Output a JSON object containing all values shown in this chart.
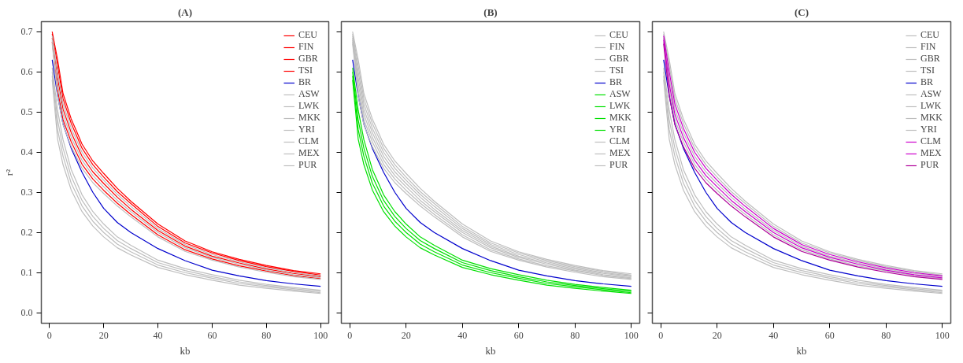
{
  "chart_data": [
    {
      "type": "line",
      "title": "(A)",
      "xlabel": "kb",
      "ylabel": "r²",
      "x": [
        1,
        3,
        5,
        8,
        10,
        12,
        16,
        20,
        25,
        30,
        40,
        50,
        60,
        70,
        80,
        90,
        100
      ],
      "xlim": [
        -3,
        103
      ],
      "xticks": [
        0,
        20,
        40,
        60,
        80,
        100
      ],
      "ylim": [
        -0.026,
        0.725
      ],
      "yticks": [
        {
          "value": 0,
          "label": "0.0"
        },
        0.1,
        0.2,
        0.3,
        0.4,
        0.5,
        0.6,
        0.7
      ],
      "grid": false,
      "legend": "top right",
      "series": [
        {
          "name": "CEU",
          "color": "#ff0000",
          "values": [
            0.695,
            0.615,
            0.533,
            0.472,
            0.441,
            0.41,
            0.369,
            0.338,
            0.302,
            0.272,
            0.215,
            0.174,
            0.149,
            0.13,
            0.115,
            0.103,
            0.094
          ]
        },
        {
          "name": "FIN",
          "color": "#ff0000",
          "values": [
            0.7,
            0.63,
            0.546,
            0.483,
            0.452,
            0.42,
            0.378,
            0.347,
            0.31,
            0.278,
            0.221,
            0.179,
            0.152,
            0.133,
            0.118,
            0.105,
            0.097
          ]
        },
        {
          "name": "GBR",
          "color": "#ff0000",
          "values": [
            0.685,
            0.585,
            0.507,
            0.449,
            0.419,
            0.39,
            0.351,
            0.322,
            0.288,
            0.258,
            0.205,
            0.166,
            0.141,
            0.124,
            0.109,
            0.098,
            0.09
          ]
        },
        {
          "name": "TSI",
          "color": "#ff0000",
          "values": [
            0.675,
            0.555,
            0.481,
            0.426,
            0.398,
            0.37,
            0.333,
            0.305,
            0.273,
            0.245,
            0.194,
            0.157,
            0.134,
            0.117,
            0.104,
            0.093,
            0.085
          ]
        },
        {
          "name": "BR",
          "color": "#0000cd",
          "values": [
            0.63,
            0.54,
            0.47,
            0.41,
            0.38,
            0.35,
            0.3,
            0.26,
            0.225,
            0.2,
            0.16,
            0.13,
            0.106,
            0.092,
            0.08,
            0.072,
            0.066
          ]
        },
        {
          "name": "ASW",
          "color": "#bebebe",
          "values": [
            0.61,
            0.504,
            0.431,
            0.357,
            0.326,
            0.294,
            0.252,
            0.221,
            0.189,
            0.168,
            0.131,
            0.11,
            0.095,
            0.081,
            0.071,
            0.063,
            0.056
          ]
        },
        {
          "name": "LWK",
          "color": "#bebebe",
          "values": [
            0.59,
            0.456,
            0.39,
            0.323,
            0.295,
            0.266,
            0.228,
            0.2,
            0.171,
            0.152,
            0.119,
            0.1,
            0.086,
            0.073,
            0.065,
            0.057,
            0.05
          ]
        },
        {
          "name": "MKK",
          "color": "#bebebe",
          "values": [
            0.6,
            0.48,
            0.41,
            0.34,
            0.31,
            0.28,
            0.24,
            0.21,
            0.18,
            0.16,
            0.125,
            0.105,
            0.09,
            0.077,
            0.068,
            0.06,
            0.053
          ]
        },
        {
          "name": "YRI",
          "color": "#bebebe",
          "values": [
            0.58,
            0.432,
            0.369,
            0.306,
            0.279,
            0.252,
            0.216,
            0.189,
            0.162,
            0.144,
            0.113,
            0.095,
            0.081,
            0.069,
            0.061,
            0.054,
            0.048
          ]
        },
        {
          "name": "CLM",
          "color": "#bebebe",
          "values": [
            0.68,
            0.57,
            0.494,
            0.437,
            0.409,
            0.38,
            0.342,
            0.314,
            0.28,
            0.252,
            0.2,
            0.162,
            0.138,
            0.121,
            0.106,
            0.095,
            0.087
          ]
        },
        {
          "name": "MEX",
          "color": "#bebebe",
          "values": [
            0.69,
            0.6,
            0.52,
            0.46,
            0.43,
            0.4,
            0.36,
            0.33,
            0.295,
            0.265,
            0.21,
            0.17,
            0.145,
            0.127,
            0.112,
            0.1,
            0.092
          ]
        },
        {
          "name": "PUR",
          "color": "#bebebe",
          "values": [
            0.67,
            0.54,
            0.468,
            0.414,
            0.387,
            0.36,
            0.324,
            0.297,
            0.266,
            0.239,
            0.189,
            0.153,
            0.131,
            0.114,
            0.101,
            0.09,
            0.083
          ]
        }
      ]
    },
    {
      "type": "line",
      "title": "(B)",
      "xlabel": "kb",
      "x": [
        1,
        3,
        5,
        8,
        10,
        12,
        16,
        20,
        25,
        30,
        40,
        50,
        60,
        70,
        80,
        90,
        100
      ],
      "xlim": [
        -3,
        103
      ],
      "xticks": [
        0,
        20,
        40,
        60,
        80,
        100
      ],
      "ylim": [
        -0.026,
        0.725
      ],
      "yticks": [
        0,
        0.1,
        0.2,
        0.3,
        0.4,
        0.5,
        0.6,
        0.7
      ],
      "tick_labels": "x",
      "grid": false,
      "legend": "top right",
      "series": [
        {
          "name": "CEU",
          "color": "#bebebe",
          "values": [
            0.695,
            0.615,
            0.533,
            0.472,
            0.441,
            0.41,
            0.369,
            0.338,
            0.302,
            0.272,
            0.215,
            0.174,
            0.149,
            0.13,
            0.115,
            0.103,
            0.094
          ]
        },
        {
          "name": "FIN",
          "color": "#bebebe",
          "values": [
            0.7,
            0.63,
            0.546,
            0.483,
            0.452,
            0.42,
            0.378,
            0.347,
            0.31,
            0.278,
            0.221,
            0.179,
            0.152,
            0.133,
            0.118,
            0.105,
            0.097
          ]
        },
        {
          "name": "GBR",
          "color": "#bebebe",
          "values": [
            0.685,
            0.585,
            0.507,
            0.449,
            0.419,
            0.39,
            0.351,
            0.322,
            0.288,
            0.258,
            0.205,
            0.166,
            0.141,
            0.124,
            0.109,
            0.098,
            0.09
          ]
        },
        {
          "name": "TSI",
          "color": "#bebebe",
          "values": [
            0.675,
            0.555,
            0.481,
            0.426,
            0.398,
            0.37,
            0.333,
            0.305,
            0.273,
            0.245,
            0.194,
            0.157,
            0.134,
            0.117,
            0.104,
            0.093,
            0.085
          ]
        },
        {
          "name": "BR",
          "color": "#0000cd",
          "values": [
            0.63,
            0.54,
            0.47,
            0.41,
            0.38,
            0.35,
            0.3,
            0.26,
            0.225,
            0.2,
            0.16,
            0.13,
            0.106,
            0.092,
            0.08,
            0.072,
            0.066
          ]
        },
        {
          "name": "ASW",
          "color": "#00e000",
          "values": [
            0.61,
            0.504,
            0.431,
            0.357,
            0.326,
            0.294,
            0.252,
            0.221,
            0.189,
            0.168,
            0.131,
            0.11,
            0.095,
            0.081,
            0.071,
            0.063,
            0.056
          ]
        },
        {
          "name": "LWK",
          "color": "#00e000",
          "values": [
            0.59,
            0.456,
            0.39,
            0.323,
            0.295,
            0.266,
            0.228,
            0.2,
            0.171,
            0.152,
            0.119,
            0.1,
            0.086,
            0.073,
            0.065,
            0.057,
            0.05
          ]
        },
        {
          "name": "MKK",
          "color": "#00e000",
          "values": [
            0.6,
            0.48,
            0.41,
            0.34,
            0.31,
            0.28,
            0.24,
            0.21,
            0.18,
            0.16,
            0.125,
            0.105,
            0.09,
            0.077,
            0.068,
            0.06,
            0.053
          ]
        },
        {
          "name": "YRI",
          "color": "#00e000",
          "values": [
            0.58,
            0.432,
            0.369,
            0.306,
            0.279,
            0.252,
            0.216,
            0.189,
            0.162,
            0.144,
            0.113,
            0.095,
            0.081,
            0.069,
            0.061,
            0.054,
            0.048
          ]
        },
        {
          "name": "CLM",
          "color": "#bebebe",
          "values": [
            0.68,
            0.57,
            0.494,
            0.437,
            0.409,
            0.38,
            0.342,
            0.314,
            0.28,
            0.252,
            0.2,
            0.162,
            0.138,
            0.121,
            0.106,
            0.095,
            0.087
          ]
        },
        {
          "name": "MEX",
          "color": "#bebebe",
          "values": [
            0.69,
            0.6,
            0.52,
            0.46,
            0.43,
            0.4,
            0.36,
            0.33,
            0.295,
            0.265,
            0.21,
            0.17,
            0.145,
            0.127,
            0.112,
            0.1,
            0.092
          ]
        },
        {
          "name": "PUR",
          "color": "#bebebe",
          "values": [
            0.67,
            0.54,
            0.468,
            0.414,
            0.387,
            0.36,
            0.324,
            0.297,
            0.266,
            0.239,
            0.189,
            0.153,
            0.131,
            0.114,
            0.101,
            0.09,
            0.083
          ]
        }
      ]
    },
    {
      "type": "line",
      "title": "(C)",
      "xlabel": "kb",
      "x": [
        1,
        3,
        5,
        8,
        10,
        12,
        16,
        20,
        25,
        30,
        40,
        50,
        60,
        70,
        80,
        90,
        100
      ],
      "xlim": [
        -3,
        103
      ],
      "xticks": [
        0,
        20,
        40,
        60,
        80,
        100
      ],
      "ylim": [
        -0.026,
        0.725
      ],
      "yticks": [
        0,
        0.1,
        0.2,
        0.3,
        0.4,
        0.5,
        0.6,
        0.7
      ],
      "tick_labels": "x",
      "grid": false,
      "legend": "top right",
      "series": [
        {
          "name": "CEU",
          "color": "#bebebe",
          "values": [
            0.695,
            0.615,
            0.533,
            0.472,
            0.441,
            0.41,
            0.369,
            0.338,
            0.302,
            0.272,
            0.215,
            0.174,
            0.149,
            0.13,
            0.115,
            0.103,
            0.094
          ]
        },
        {
          "name": "FIN",
          "color": "#bebebe",
          "values": [
            0.7,
            0.63,
            0.546,
            0.483,
            0.452,
            0.42,
            0.378,
            0.347,
            0.31,
            0.278,
            0.221,
            0.179,
            0.152,
            0.133,
            0.118,
            0.105,
            0.097
          ]
        },
        {
          "name": "GBR",
          "color": "#bebebe",
          "values": [
            0.685,
            0.585,
            0.507,
            0.449,
            0.419,
            0.39,
            0.351,
            0.322,
            0.288,
            0.258,
            0.205,
            0.166,
            0.141,
            0.124,
            0.109,
            0.098,
            0.09
          ]
        },
        {
          "name": "TSI",
          "color": "#bebebe",
          "values": [
            0.675,
            0.555,
            0.481,
            0.426,
            0.398,
            0.37,
            0.333,
            0.305,
            0.273,
            0.245,
            0.194,
            0.157,
            0.134,
            0.117,
            0.104,
            0.093,
            0.085
          ]
        },
        {
          "name": "BR",
          "color": "#0000cd",
          "values": [
            0.63,
            0.54,
            0.47,
            0.41,
            0.38,
            0.35,
            0.3,
            0.26,
            0.225,
            0.2,
            0.16,
            0.13,
            0.106,
            0.092,
            0.08,
            0.072,
            0.066
          ]
        },
        {
          "name": "ASW",
          "color": "#bebebe",
          "values": [
            0.61,
            0.504,
            0.431,
            0.357,
            0.326,
            0.294,
            0.252,
            0.221,
            0.189,
            0.168,
            0.131,
            0.11,
            0.095,
            0.081,
            0.071,
            0.063,
            0.056
          ]
        },
        {
          "name": "LWK",
          "color": "#bebebe",
          "values": [
            0.59,
            0.456,
            0.39,
            0.323,
            0.295,
            0.266,
            0.228,
            0.2,
            0.171,
            0.152,
            0.119,
            0.1,
            0.086,
            0.073,
            0.065,
            0.057,
            0.05
          ]
        },
        {
          "name": "MKK",
          "color": "#bebebe",
          "values": [
            0.6,
            0.48,
            0.41,
            0.34,
            0.31,
            0.28,
            0.24,
            0.21,
            0.18,
            0.16,
            0.125,
            0.105,
            0.09,
            0.077,
            0.068,
            0.06,
            0.053
          ]
        },
        {
          "name": "YRI",
          "color": "#bebebe",
          "values": [
            0.58,
            0.432,
            0.369,
            0.306,
            0.279,
            0.252,
            0.216,
            0.189,
            0.162,
            0.144,
            0.113,
            0.095,
            0.081,
            0.069,
            0.061,
            0.054,
            0.048
          ]
        },
        {
          "name": "CLM",
          "color": "#cc00cc",
          "values": [
            0.68,
            0.57,
            0.494,
            0.437,
            0.409,
            0.38,
            0.342,
            0.314,
            0.28,
            0.252,
            0.2,
            0.162,
            0.138,
            0.121,
            0.106,
            0.095,
            0.087
          ]
        },
        {
          "name": "MEX",
          "color": "#cc00cc",
          "values": [
            0.69,
            0.6,
            0.52,
            0.46,
            0.43,
            0.4,
            0.36,
            0.33,
            0.295,
            0.265,
            0.21,
            0.17,
            0.145,
            0.127,
            0.112,
            0.1,
            0.092
          ]
        },
        {
          "name": "PUR",
          "color": "#b0009a",
          "values": [
            0.67,
            0.54,
            0.468,
            0.414,
            0.387,
            0.36,
            0.324,
            0.297,
            0.266,
            0.239,
            0.189,
            0.153,
            0.131,
            0.114,
            0.101,
            0.09,
            0.083
          ]
        }
      ]
    }
  ]
}
